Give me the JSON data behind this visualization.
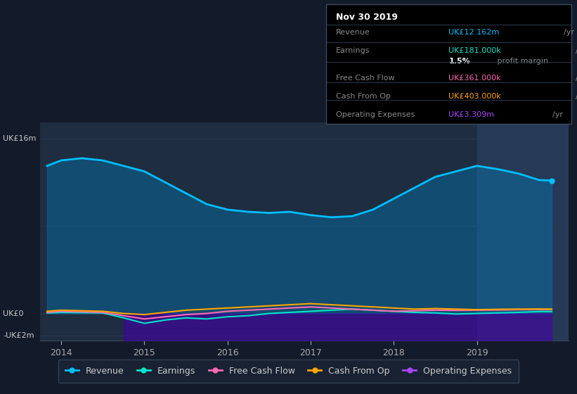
{
  "bg_color": "#131a2a",
  "plot_bg": "#1e2d40",
  "grid_color": "#2a3a50",
  "x_min": 2013.75,
  "x_max": 2020.1,
  "y_min": -2.5,
  "y_max": 17.5,
  "x_ticks": [
    2014,
    2015,
    2016,
    2017,
    2018,
    2019
  ],
  "legend_items": [
    {
      "label": "Revenue",
      "color": "#00bfff"
    },
    {
      "label": "Earnings",
      "color": "#00e5cc"
    },
    {
      "label": "Free Cash Flow",
      "color": "#ff69b4"
    },
    {
      "label": "Cash From Op",
      "color": "#ffa500"
    },
    {
      "label": "Operating Expenses",
      "color": "#aa44ff"
    }
  ],
  "revenue_x": [
    2013.83,
    2014.0,
    2014.25,
    2014.5,
    2014.75,
    2015.0,
    2015.25,
    2015.5,
    2015.75,
    2016.0,
    2016.25,
    2016.5,
    2016.75,
    2017.0,
    2017.25,
    2017.5,
    2017.75,
    2018.0,
    2018.25,
    2018.5,
    2018.75,
    2019.0,
    2019.25,
    2019.5,
    2019.75,
    2019.9
  ],
  "revenue_y": [
    13.5,
    14.0,
    14.2,
    14.0,
    13.5,
    13.0,
    12.0,
    11.0,
    10.0,
    9.5,
    9.3,
    9.2,
    9.3,
    9.0,
    8.8,
    8.9,
    9.5,
    10.5,
    11.5,
    12.5,
    13.0,
    13.5,
    13.2,
    12.8,
    12.2,
    12.162
  ],
  "op_exp_x": [
    2014.75,
    2015.0,
    2015.25,
    2015.5,
    2015.75,
    2016.0,
    2016.25,
    2016.5,
    2016.75,
    2017.0,
    2017.25,
    2017.5,
    2017.75,
    2018.0,
    2018.25,
    2018.5,
    2018.75,
    2019.0,
    2019.25,
    2019.5,
    2019.75,
    2019.9
  ],
  "op_exp_y": [
    -3.5,
    -3.8,
    -3.7,
    -3.6,
    -3.5,
    -3.4,
    -3.3,
    -3.3,
    -3.2,
    -3.0,
    -3.1,
    -3.0,
    -2.9,
    -3.0,
    -3.1,
    -3.2,
    -3.3,
    -3.3,
    -3.3,
    -3.3,
    -3.3,
    -3.309
  ],
  "earnings_x": [
    2013.83,
    2014.0,
    2014.25,
    2014.5,
    2014.75,
    2015.0,
    2015.25,
    2015.5,
    2015.75,
    2016.0,
    2016.25,
    2016.5,
    2016.75,
    2017.0,
    2017.25,
    2017.5,
    2017.75,
    2018.0,
    2018.25,
    2018.5,
    2018.75,
    2019.0,
    2019.25,
    2019.5,
    2019.75,
    2019.9
  ],
  "earnings_y": [
    0.05,
    0.1,
    0.08,
    0.05,
    -0.4,
    -0.9,
    -0.6,
    -0.4,
    -0.5,
    -0.3,
    -0.2,
    0.0,
    0.1,
    0.2,
    0.3,
    0.4,
    0.3,
    0.2,
    0.1,
    0.05,
    -0.05,
    0.0,
    0.05,
    0.1,
    0.18,
    0.181
  ],
  "fcf_x": [
    2013.83,
    2014.0,
    2014.25,
    2014.5,
    2014.75,
    2015.0,
    2015.25,
    2015.5,
    2015.75,
    2016.0,
    2016.25,
    2016.5,
    2016.75,
    2017.0,
    2017.25,
    2017.5,
    2017.75,
    2018.0,
    2018.25,
    2018.5,
    2018.75,
    2019.0,
    2019.25,
    2019.5,
    2019.75,
    2019.9
  ],
  "fcf_y": [
    0.1,
    0.2,
    0.15,
    0.1,
    -0.2,
    -0.5,
    -0.3,
    -0.1,
    0.0,
    0.2,
    0.3,
    0.4,
    0.5,
    0.6,
    0.5,
    0.4,
    0.3,
    0.2,
    0.25,
    0.3,
    0.28,
    0.3,
    0.32,
    0.35,
    0.36,
    0.361
  ],
  "cashfromop_x": [
    2013.83,
    2014.0,
    2014.25,
    2014.5,
    2014.75,
    2015.0,
    2015.25,
    2015.5,
    2015.75,
    2016.0,
    2016.25,
    2016.5,
    2016.75,
    2017.0,
    2017.25,
    2017.5,
    2017.75,
    2018.0,
    2018.25,
    2018.5,
    2018.75,
    2019.0,
    2019.25,
    2019.5,
    2019.75,
    2019.9
  ],
  "cashfromop_y": [
    0.2,
    0.3,
    0.25,
    0.2,
    0.0,
    -0.1,
    0.1,
    0.3,
    0.4,
    0.5,
    0.6,
    0.7,
    0.8,
    0.9,
    0.8,
    0.7,
    0.6,
    0.5,
    0.4,
    0.45,
    0.4,
    0.35,
    0.38,
    0.4,
    0.41,
    0.403
  ],
  "infobox": {
    "date": "Nov 30 2019",
    "rows": [
      {
        "label": "Revenue",
        "value": "UK£12.162m",
        "unit": "/yr",
        "color": "#00bfff"
      },
      {
        "label": "Earnings",
        "value": "UK£181.000k",
        "unit": "/yr",
        "color": "#00e5cc"
      },
      {
        "label": "",
        "value": "1.5%",
        "unit": " profit margin",
        "color": "#ffffff",
        "bold_value": true
      },
      {
        "label": "Free Cash Flow",
        "value": "UK£361.000k",
        "unit": "/yr",
        "color": "#ff69b4"
      },
      {
        "label": "Cash From Op",
        "value": "UK£403.000k",
        "unit": "/yr",
        "color": "#ffa500"
      },
      {
        "label": "Operating Expenses",
        "value": "UK£3.309m",
        "unit": "/yr",
        "color": "#aa44ff"
      }
    ]
  },
  "highlight_x": 2019.0,
  "highlight_end": 2020.1,
  "y_label_16": "UK£16m",
  "y_label_0": "UK£0",
  "y_label_m2": "-UK£2m"
}
